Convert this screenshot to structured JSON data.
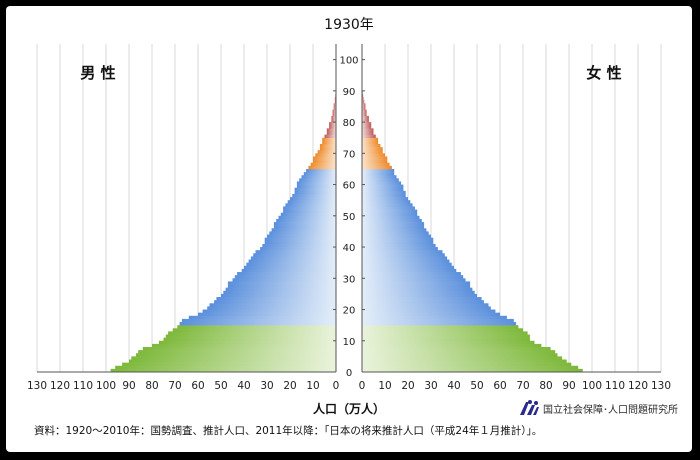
{
  "chart_data": {
    "type": "population_pyramid",
    "title": "1930年",
    "left_label": "男 性",
    "right_label": "女 性",
    "xlabel": "人口（万人）",
    "xlim": [
      0,
      130
    ],
    "ylim": [
      0,
      105
    ],
    "x_ticks": [
      "130",
      "120",
      "110",
      "100",
      "90",
      "80",
      "70",
      "60",
      "50",
      "40",
      "30",
      "20",
      "10",
      "0",
      "0",
      "10",
      "20",
      "30",
      "40",
      "50",
      "60",
      "70",
      "80",
      "90",
      "100",
      "110",
      "120",
      "130"
    ],
    "y_ticks": [
      "0",
      "10",
      "20",
      "30",
      "40",
      "50",
      "60",
      "70",
      "80",
      "90",
      "100"
    ],
    "grid": true,
    "age_groups": [
      {
        "name": "0-14",
        "color": "#8cc04a"
      },
      {
        "name": "15-64",
        "color": "#6f9ee0"
      },
      {
        "name": "65-74",
        "color": "#f0963a"
      },
      {
        "name": "75+",
        "color": "#c96a6a"
      }
    ],
    "male": [
      98,
      96,
      93,
      90,
      89,
      87,
      86,
      84,
      80,
      77,
      75,
      74,
      73,
      71,
      69,
      68,
      67,
      64,
      60,
      58,
      56,
      55,
      53,
      52,
      50,
      49,
      48,
      47,
      47,
      45,
      44,
      43,
      41,
      40,
      39,
      38,
      37,
      36,
      35,
      33,
      32,
      31,
      31,
      30,
      29,
      28,
      27,
      27,
      26,
      25,
      24,
      23,
      23,
      22,
      21,
      20,
      19,
      18,
      18,
      17,
      17,
      16,
      15,
      14,
      13,
      12,
      11,
      10,
      10,
      9,
      8,
      7,
      7,
      6,
      6,
      5,
      4,
      4,
      3,
      3,
      2,
      2,
      1.5,
      1.5,
      1,
      1,
      0.5,
      0.5,
      0.3,
      0.2,
      0.1
    ],
    "female": [
      96,
      94,
      91,
      89,
      87,
      85,
      84,
      82,
      78,
      75,
      73,
      73,
      72,
      70,
      68,
      67,
      66,
      63,
      60,
      58,
      56,
      55,
      53,
      52,
      50,
      49,
      48,
      47,
      47,
      45,
      44,
      43,
      41,
      40,
      39,
      38,
      37,
      36,
      35,
      33,
      32,
      31,
      31,
      30,
      29,
      28,
      27,
      27,
      26,
      25,
      24,
      24,
      23,
      22,
      21,
      20,
      19,
      19,
      18,
      18,
      17,
      16,
      15,
      14,
      14,
      13,
      12,
      11,
      11,
      10,
      9,
      9,
      8,
      7,
      7,
      6,
      5,
      5,
      4,
      4,
      3,
      3,
      2,
      2,
      1.5,
      1.5,
      1,
      0.7,
      0.5,
      0.3,
      0.2
    ]
  },
  "source_note": "資料：1920～2010年：国勢調査、推計人口、2011年以降：「日本の将来推計人口（平成24年１月推計）」。",
  "logo": {
    "icon": "ipss-logo-icon",
    "text": "国立社会保障･人口問題研究所"
  }
}
